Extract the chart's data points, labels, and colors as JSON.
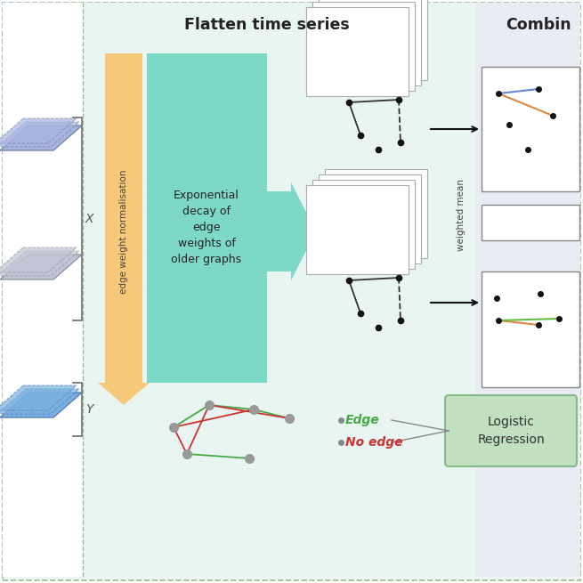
{
  "title_flatten": "Flatten time series",
  "title_combine": "Combin",
  "bg_outer_color": "#eef5ee",
  "bg_inner_color": "#e8f5f0",
  "orange_bar_color": "#f5c87a",
  "teal_color": "#7dd8c8",
  "card_edge_color": "#aaaaaa",
  "card_face_color": "#ffffff",
  "graph_node_color": "#111111",
  "edge_green": "#44aa44",
  "edge_red": "#cc3333",
  "logistic_box_color": "#c0e0c0",
  "logistic_border": "#88bb88",
  "logistic_text": "Logistic\nRegression",
  "edge_label": "Edge",
  "no_edge_label": "No edge",
  "x_label": "X",
  "y_label": "Y",
  "ewn_label": "edge weight normalisation",
  "exp_decay_label": "Exponential\ndecay of\nedge\nweights of\nolder graphs",
  "weighted_mean_label": "weighted mean",
  "right_bg_color": "#eaecf5",
  "arrow_color": "#111111"
}
